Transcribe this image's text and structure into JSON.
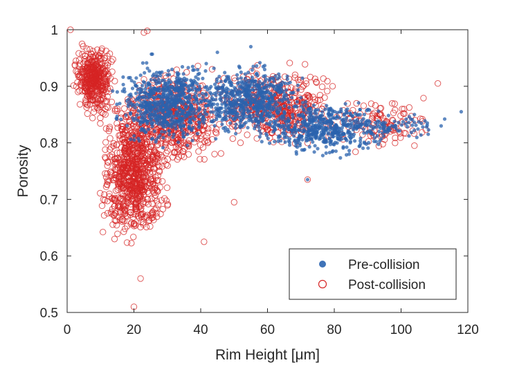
{
  "chart_data": {
    "type": "scatter",
    "title": "",
    "xlabel": "Rim Height [μm]",
    "ylabel": "Porosity",
    "xlim": [
      0,
      120
    ],
    "ylim": [
      0.5,
      1
    ],
    "xticks": [
      "0",
      "20",
      "40",
      "60",
      "80",
      "100",
      "120"
    ],
    "yticks": [
      "0.5",
      "0.6",
      "0.7",
      "0.8",
      "0.9",
      "1"
    ],
    "grid": false,
    "legend_position": "bottom-right",
    "series": [
      {
        "name": "Pre-collision",
        "marker": "filled-circle",
        "color": "#2b63ad",
        "clusters": [
          {
            "x_range": [
              12,
              50
            ],
            "y_range": [
              0.78,
              0.96
            ],
            "n": 700
          },
          {
            "x_range": [
              35,
              75
            ],
            "y_range": [
              0.8,
              0.95
            ],
            "n": 600
          },
          {
            "x_range": [
              55,
              100
            ],
            "y_range": [
              0.77,
              0.88
            ],
            "n": 500
          },
          {
            "x_range": [
              80,
              118
            ],
            "y_range": [
              0.8,
              0.86
            ],
            "n": 70
          }
        ],
        "points": [
          [
            15,
            0.89
          ],
          [
            22,
            0.85
          ],
          [
            30,
            0.92
          ],
          [
            38,
            0.91
          ],
          [
            45,
            0.96
          ],
          [
            55,
            0.97
          ],
          [
            70,
            0.88
          ],
          [
            72,
            0.735
          ],
          [
            90,
            0.82
          ],
          [
            104,
            0.85
          ],
          [
            112,
            0.83
          ],
          [
            118,
            0.855
          ]
        ]
      },
      {
        "name": "Post-collision",
        "marker": "open-circle",
        "color": "#d62424",
        "clusters": [
          {
            "x_range": [
              1,
              15
            ],
            "y_range": [
              0.84,
              0.985
            ],
            "n": 400
          },
          {
            "x_range": [
              8,
              32
            ],
            "y_range": [
              0.6,
              0.9
            ],
            "n": 800
          },
          {
            "x_range": [
              15,
              50
            ],
            "y_range": [
              0.74,
              0.95
            ],
            "n": 500
          },
          {
            "x_range": [
              40,
              85
            ],
            "y_range": [
              0.78,
              0.95
            ],
            "n": 450
          },
          {
            "x_range": [
              75,
              112
            ],
            "y_range": [
              0.78,
              0.89
            ],
            "n": 120
          }
        ],
        "points": [
          [
            1,
            1.0
          ],
          [
            23,
            0.995
          ],
          [
            24,
            0.998
          ],
          [
            20,
            0.51
          ],
          [
            22,
            0.56
          ],
          [
            41,
            0.625
          ],
          [
            50,
            0.695
          ],
          [
            72,
            0.735
          ],
          [
            104,
            0.795
          ],
          [
            111,
            0.905
          ]
        ]
      }
    ]
  },
  "legend": {
    "pre_label": "Pre-collision",
    "post_label": "Post-collision"
  }
}
